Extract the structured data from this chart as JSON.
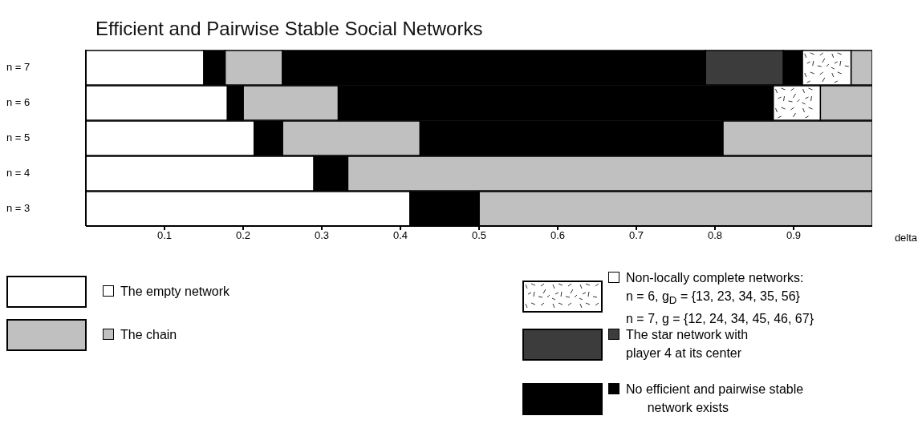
{
  "chart_data": {
    "type": "bar",
    "orientation": "horizontal",
    "title": "Efficient and Pairwise Stable Social Networks",
    "xlabel": "delta",
    "categories": [
      "n = 7",
      "n = 6",
      "n = 5",
      "n = 4",
      "n = 3"
    ],
    "xlim": [
      0,
      1
    ],
    "xticks": [
      0.1,
      0.2,
      0.3,
      0.4,
      0.5,
      0.6,
      0.7,
      0.8,
      0.9
    ],
    "legend": "bottom",
    "series": [
      {
        "name": "The empty network",
        "color": "#ffffff",
        "base": [
          0,
          0,
          0,
          0,
          0
        ],
        "values": [
          0.15,
          0.18,
          0.214,
          0.29,
          0.412
        ]
      },
      {
        "name": "The chain",
        "color": "#c0c0c0",
        "base": [
          0.177,
          0.2,
          0.25,
          0.333,
          0.5
        ],
        "values": [
          0.073,
          0.121,
          0.175,
          0.667,
          0.5
        ]
      },
      {
        "color": "#c0c0c0",
        "base": [
          0.973,
          0.934,
          0.81,
          null,
          null
        ],
        "values": [
          0.027,
          0.066,
          0.19,
          null,
          null
        ]
      },
      {
        "name": "Non-locally complete networks:\nn = 6, g$_{D}$ = {13, 23, 34, 35, 56}\nn = 7, g = {12, 24, 34, 45, 46, 67}",
        "color": "#ffffff",
        "base": [
          0.911,
          0.874,
          null,
          null,
          null
        ],
        "values": [
          0.062,
          0.06,
          null,
          null,
          null
        ]
      },
      {
        "name": "The star network with\nplayer 4 at its center",
        "color": "#3c3c3c",
        "base": [
          0.788,
          null,
          null,
          null,
          null
        ],
        "values": [
          0.099,
          null,
          null,
          null,
          null
        ]
      },
      {
        "name": "No efficient and pairwise stable\n      network exists",
        "color": "#000000",
        "base": [
          0.15,
          0.18,
          0.214,
          0.29,
          0.412
        ],
        "values": [
          0.027,
          0.02,
          0.036,
          0.043,
          0.088
        ]
      },
      {
        "color": "#000000",
        "base": [
          0.25,
          0.321,
          0.425,
          null,
          null
        ],
        "values": [
          0.538,
          0.553,
          0.385,
          null,
          null
        ]
      },
      {
        "color": "#000000",
        "base": [
          0.887,
          null,
          null,
          null,
          null
        ],
        "values": [
          0.024,
          null,
          null,
          null,
          null
        ]
      }
    ]
  }
}
